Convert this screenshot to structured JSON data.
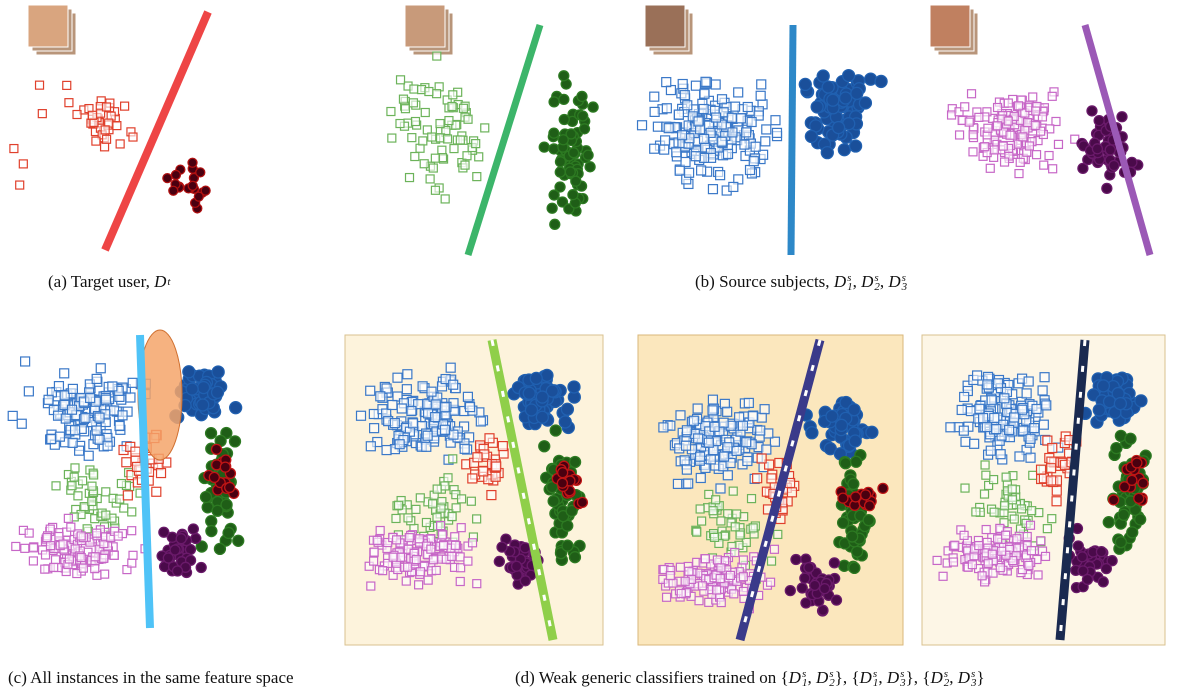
{
  "figure": {
    "captions": [
      {
        "parts": [
          {
            "text": "(a) Target user, "
          },
          {
            "base": "D",
            "sup": "t"
          }
        ]
      },
      {
        "parts": [
          {
            "text": "(b) Source subjects, "
          },
          {
            "base": "D",
            "sub": "1",
            "sup": "s"
          },
          {
            "text": ", "
          },
          {
            "base": "D",
            "sub": "2",
            "sup": "s"
          },
          {
            "text": ", "
          },
          {
            "base": "D",
            "sub": "3",
            "sup": "s"
          }
        ]
      },
      {
        "parts": [
          {
            "text": "(c) All instances in the same feature space"
          }
        ]
      },
      {
        "parts": [
          {
            "text": "(d) Weak generic classifiers trained on {"
          },
          {
            "base": "D",
            "sub": "1",
            "sup": "s"
          },
          {
            "text": ", "
          },
          {
            "base": "D",
            "sub": "2",
            "sup": "s"
          },
          {
            "text": "}, {"
          },
          {
            "base": "D",
            "sub": "1",
            "sup": "s"
          },
          {
            "text": ", "
          },
          {
            "base": "D",
            "sub": "3",
            "sup": "s"
          },
          {
            "text": "}, {"
          },
          {
            "base": "D",
            "sub": "2",
            "sup": "s"
          },
          {
            "text": ", "
          },
          {
            "base": "D",
            "sub": "3",
            "sup": "s"
          },
          {
            "text": "}"
          }
        ]
      }
    ]
  }
}
